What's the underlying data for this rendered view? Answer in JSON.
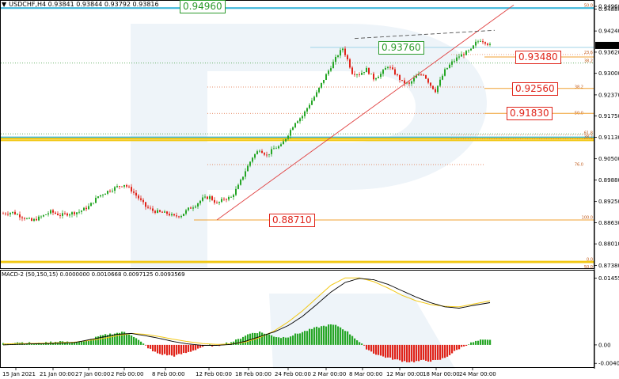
{
  "header": {
    "arrow": "▼",
    "symbol_label": "USDCHF,H4",
    "ohlc": "0.93841 0.93844 0.93792 0.93816"
  },
  "macd_header": "MACD-2 (50,150,15) 0.0000000 0.0010668 0.0097125 0.0093569",
  "current_price": "0.93816",
  "chart_data": {
    "type": "candlestick",
    "symbol": "USDCHF",
    "timeframe": "H4",
    "y_range": [
      0.8732,
      0.951
    ],
    "price_ticks": [
      "0.94960",
      "0.94880",
      "0.94240",
      "0.93620",
      "0.93000",
      "0.92370",
      "0.91750",
      "0.91130",
      "0.90500",
      "0.89880",
      "0.89250",
      "0.88630",
      "0.88010",
      "0.87380"
    ],
    "price_tick_values": [
      0.9496,
      0.9488,
      0.9424,
      0.9362,
      0.93,
      0.9237,
      0.9175,
      0.9113,
      0.905,
      0.8988,
      0.8925,
      0.8863,
      0.8801,
      0.8738
    ],
    "time_ticks": [
      "15 Jan 2021",
      "21 Jan 00:00",
      "27 Jan 00:00",
      "2 Feb 00:00",
      "8 Feb 00:00",
      "12 Feb 00:00",
      "18 Feb 00:00",
      "24 Feb 00:00",
      "2 Mar 00:00",
      "8 Mar 00:00",
      "12 Mar 00:00",
      "18 Mar 00:00",
      "24 Mar 00:00"
    ],
    "close_keypoints": [
      [
        0,
        0.889
      ],
      [
        4,
        0.8893
      ],
      [
        8,
        0.888
      ],
      [
        12,
        0.8868
      ],
      [
        16,
        0.888
      ],
      [
        20,
        0.8895
      ],
      [
        24,
        0.8885
      ],
      [
        28,
        0.889
      ],
      [
        32,
        0.8895
      ],
      [
        36,
        0.891
      ],
      [
        40,
        0.894
      ],
      [
        44,
        0.8955
      ],
      [
        48,
        0.8968
      ],
      [
        51,
        0.8975
      ],
      [
        54,
        0.8958
      ],
      [
        57,
        0.8935
      ],
      [
        60,
        0.891
      ],
      [
        63,
        0.8898
      ],
      [
        66,
        0.8893
      ],
      [
        69,
        0.889
      ],
      [
        72,
        0.8881
      ],
      [
        75,
        0.8885
      ],
      [
        78,
        0.8903
      ],
      [
        81,
        0.8915
      ],
      [
        84,
        0.8933
      ],
      [
        87,
        0.8938
      ],
      [
        90,
        0.8918
      ],
      [
        93,
        0.8933
      ],
      [
        96,
        0.8937
      ],
      [
        99,
        0.897
      ],
      [
        102,
        0.9015
      ],
      [
        105,
        0.9055
      ],
      [
        108,
        0.9078
      ],
      [
        111,
        0.906
      ],
      [
        114,
        0.908
      ],
      [
        117,
        0.9088
      ],
      [
        120,
        0.9122
      ],
      [
        123,
        0.9158
      ],
      [
        126,
        0.9175
      ],
      [
        129,
        0.921
      ],
      [
        132,
        0.9242
      ],
      [
        135,
        0.9283
      ],
      [
        138,
        0.932
      ],
      [
        141,
        0.9355
      ],
      [
        143,
        0.9373
      ],
      [
        145,
        0.934
      ],
      [
        147,
        0.9302
      ],
      [
        150,
        0.9298
      ],
      [
        153,
        0.9312
      ],
      [
        156,
        0.9285
      ],
      [
        159,
        0.9298
      ],
      [
        162,
        0.9322
      ],
      [
        165,
        0.93
      ],
      [
        168,
        0.9275
      ],
      [
        171,
        0.9268
      ],
      [
        174,
        0.9292
      ],
      [
        177,
        0.9298
      ],
      [
        180,
        0.9265
      ],
      [
        182,
        0.9249
      ],
      [
        184,
        0.9278
      ],
      [
        186,
        0.9308
      ],
      [
        189,
        0.9332
      ],
      [
        192,
        0.935
      ],
      [
        195,
        0.9361
      ],
      [
        197,
        0.9368
      ],
      [
        199,
        0.9389
      ],
      [
        201,
        0.9398
      ],
      [
        203,
        0.9392
      ],
      [
        205,
        0.9382
      ]
    ],
    "horizontal_levels": {
      "blue": [
        0.9491,
        0.9113,
        0.9112
      ],
      "yellow": [
        0.9109,
        0.9104,
        0.8749,
        0.8747
      ]
    },
    "annotation_labels": [
      {
        "text": "0.94960",
        "price": 0.9496,
        "color": "green"
      },
      {
        "text": "0.93760",
        "price": 0.9376,
        "color": "green"
      },
      {
        "text": "0.93480",
        "price": 0.9348,
        "color": "red"
      },
      {
        "text": "0.92560",
        "price": 0.9256,
        "color": "red"
      },
      {
        "text": "0.91830",
        "price": 0.9183,
        "color": "red"
      },
      {
        "text": "0.88710",
        "price": 0.8871,
        "color": "red"
      }
    ],
    "fib_right": [
      {
        "label": "50.0",
        "price": 0.9493
      },
      {
        "label": "23.6",
        "price": 0.9355
      },
      {
        "label": "38.2",
        "price": 0.933
      },
      {
        "label": "61.8",
        "price": 0.912
      },
      {
        "label": "38.2",
        "price": 0.9108
      },
      {
        "label": "100.0",
        "price": 0.8872
      },
      {
        "label": "0.0",
        "price": 0.8749
      },
      {
        "label": "50.0",
        "price": 0.8727
      }
    ],
    "fib_inner": [
      {
        "label": "38.2",
        "price": 0.926
      },
      {
        "label": "50.0",
        "price": 0.9183
      },
      {
        "label": "76.0",
        "price": 0.9033
      }
    ],
    "macd": {
      "ticks": [
        "0.0145544",
        "0.00",
        "-0.0040228"
      ],
      "tick_values": [
        0.0145544,
        0.0,
        -0.0040228
      ],
      "range": [
        -0.0045,
        0.0155
      ],
      "hist_keypoints": [
        [
          0,
          0.0003
        ],
        [
          6,
          0.0006
        ],
        [
          12,
          0.0004
        ],
        [
          16,
          0.0003
        ],
        [
          20,
          0.0006
        ],
        [
          24,
          0.0008
        ],
        [
          28,
          0.0005
        ],
        [
          32,
          0.0006
        ],
        [
          36,
          0.001
        ],
        [
          40,
          0.0018
        ],
        [
          44,
          0.0023
        ],
        [
          48,
          0.0026
        ],
        [
          51,
          0.0028
        ],
        [
          54,
          0.0022
        ],
        [
          57,
          0.001
        ],
        [
          60,
          -0.0002
        ],
        [
          63,
          -0.0014
        ],
        [
          66,
          -0.002
        ],
        [
          69,
          -0.0022
        ],
        [
          72,
          -0.0024
        ],
        [
          75,
          -0.002
        ],
        [
          78,
          -0.0016
        ],
        [
          81,
          -0.001
        ],
        [
          84,
          -0.0004
        ],
        [
          87,
          -0.0001
        ],
        [
          90,
          -0.0003
        ],
        [
          93,
          0.0003
        ],
        [
          96,
          0.0006
        ],
        [
          99,
          0.0012
        ],
        [
          102,
          0.0021
        ],
        [
          105,
          0.0026
        ],
        [
          108,
          0.0028
        ],
        [
          111,
          0.0024
        ],
        [
          114,
          0.0019
        ],
        [
          117,
          0.0016
        ],
        [
          120,
          0.0018
        ],
        [
          123,
          0.0023
        ],
        [
          126,
          0.0028
        ],
        [
          129,
          0.0033
        ],
        [
          132,
          0.0038
        ],
        [
          135,
          0.0041
        ],
        [
          138,
          0.0044
        ],
        [
          141,
          0.0041
        ],
        [
          144,
          0.0032
        ],
        [
          147,
          0.002
        ],
        [
          150,
          0.0006
        ],
        [
          153,
          -0.0008
        ],
        [
          156,
          -0.0018
        ],
        [
          159,
          -0.0024
        ],
        [
          162,
          -0.0028
        ],
        [
          165,
          -0.0032
        ],
        [
          168,
          -0.0035
        ],
        [
          171,
          -0.0037
        ],
        [
          174,
          -0.0036
        ],
        [
          177,
          -0.0034
        ],
        [
          180,
          -0.0035
        ],
        [
          183,
          -0.0034
        ],
        [
          186,
          -0.0028
        ],
        [
          189,
          -0.0018
        ],
        [
          192,
          -0.0008
        ],
        [
          195,
          0.0
        ],
        [
          198,
          0.0006
        ],
        [
          201,
          0.001
        ],
        [
          205,
          0.001
        ]
      ],
      "main_keypoints": [
        [
          0,
          0.0
        ],
        [
          10,
          0.0002
        ],
        [
          20,
          0.0003
        ],
        [
          30,
          0.0005
        ],
        [
          40,
          0.0015
        ],
        [
          48,
          0.0023
        ],
        [
          54,
          0.0025
        ],
        [
          60,
          0.002
        ],
        [
          66,
          0.0014
        ],
        [
          72,
          0.0007
        ],
        [
          78,
          0.0002
        ],
        [
          84,
          -0.0001
        ],
        [
          90,
          -0.0001
        ],
        [
          96,
          0.0001
        ],
        [
          102,
          0.0008
        ],
        [
          108,
          0.0018
        ],
        [
          114,
          0.0028
        ],
        [
          120,
          0.0042
        ],
        [
          126,
          0.0062
        ],
        [
          132,
          0.0088
        ],
        [
          138,
          0.0115
        ],
        [
          144,
          0.0136
        ],
        [
          150,
          0.0145
        ],
        [
          156,
          0.0142
        ],
        [
          162,
          0.0132
        ],
        [
          168,
          0.0118
        ],
        [
          174,
          0.0104
        ],
        [
          180,
          0.0092
        ],
        [
          186,
          0.0083
        ],
        [
          192,
          0.008
        ],
        [
          198,
          0.0086
        ],
        [
          205,
          0.0092
        ]
      ],
      "signal_keypoints": [
        [
          0,
          0.0002
        ],
        [
          10,
          0.0003
        ],
        [
          20,
          0.0004
        ],
        [
          30,
          0.0006
        ],
        [
          40,
          0.0012
        ],
        [
          48,
          0.002
        ],
        [
          54,
          0.0025
        ],
        [
          60,
          0.0023
        ],
        [
          66,
          0.0018
        ],
        [
          72,
          0.0012
        ],
        [
          78,
          0.0007
        ],
        [
          84,
          0.0003
        ],
        [
          90,
          0.0001
        ],
        [
          96,
          0.0002
        ],
        [
          102,
          0.0006
        ],
        [
          108,
          0.0016
        ],
        [
          114,
          0.003
        ],
        [
          120,
          0.005
        ],
        [
          126,
          0.0074
        ],
        [
          132,
          0.0102
        ],
        [
          138,
          0.013
        ],
        [
          144,
          0.0146
        ],
        [
          150,
          0.0146
        ],
        [
          156,
          0.0138
        ],
        [
          162,
          0.0124
        ],
        [
          168,
          0.0108
        ],
        [
          174,
          0.0096
        ],
        [
          180,
          0.0088
        ],
        [
          186,
          0.0084
        ],
        [
          192,
          0.0083
        ],
        [
          198,
          0.0089
        ],
        [
          205,
          0.0096
        ]
      ]
    },
    "colors": {
      "bull": "#26a626",
      "bear": "#e0241a",
      "blue_level": "#3fb7d9",
      "yellow_level": "#f2c814",
      "orange_level": "#f0a030",
      "trendline": "#e04040",
      "macd_main": "#000000",
      "macd_signal": "#f2c814"
    }
  }
}
